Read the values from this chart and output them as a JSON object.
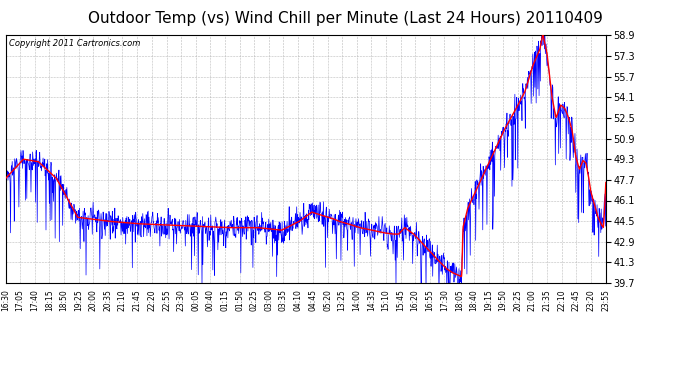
{
  "title": "Outdoor Temp (vs) Wind Chill per Minute (Last 24 Hours) 20110409",
  "copyright": "Copyright 2011 Cartronics.com",
  "ylim": [
    39.7,
    58.9
  ],
  "yticks": [
    39.7,
    41.3,
    42.9,
    44.5,
    46.1,
    47.7,
    49.3,
    50.9,
    52.5,
    54.1,
    55.7,
    57.3,
    58.9
  ],
  "xtick_labels": [
    "16:30",
    "17:05",
    "17:40",
    "18:15",
    "18:50",
    "19:25",
    "20:00",
    "20:35",
    "21:10",
    "21:45",
    "22:20",
    "22:55",
    "23:30",
    "00:05",
    "00:40",
    "01:15",
    "01:50",
    "02:25",
    "03:00",
    "03:35",
    "04:10",
    "04:45",
    "05:20",
    "13:25",
    "14:00",
    "14:35",
    "15:10",
    "15:45",
    "16:20",
    "16:55",
    "17:30",
    "18:05",
    "18:40",
    "19:15",
    "19:50",
    "20:25",
    "21:00",
    "21:35",
    "22:10",
    "22:45",
    "23:20",
    "23:55"
  ],
  "background_color": "#ffffff",
  "plot_bg_color": "#ffffff",
  "grid_color": "#aaaaaa",
  "title_fontsize": 11,
  "copyright_fontsize": 6,
  "ytick_fontsize": 7,
  "xtick_fontsize": 5.5,
  "line_color_red": "#ff0000",
  "line_color_blue": "#0000ff",
  "red_lw": 1.0,
  "blue_lw": 0.5
}
